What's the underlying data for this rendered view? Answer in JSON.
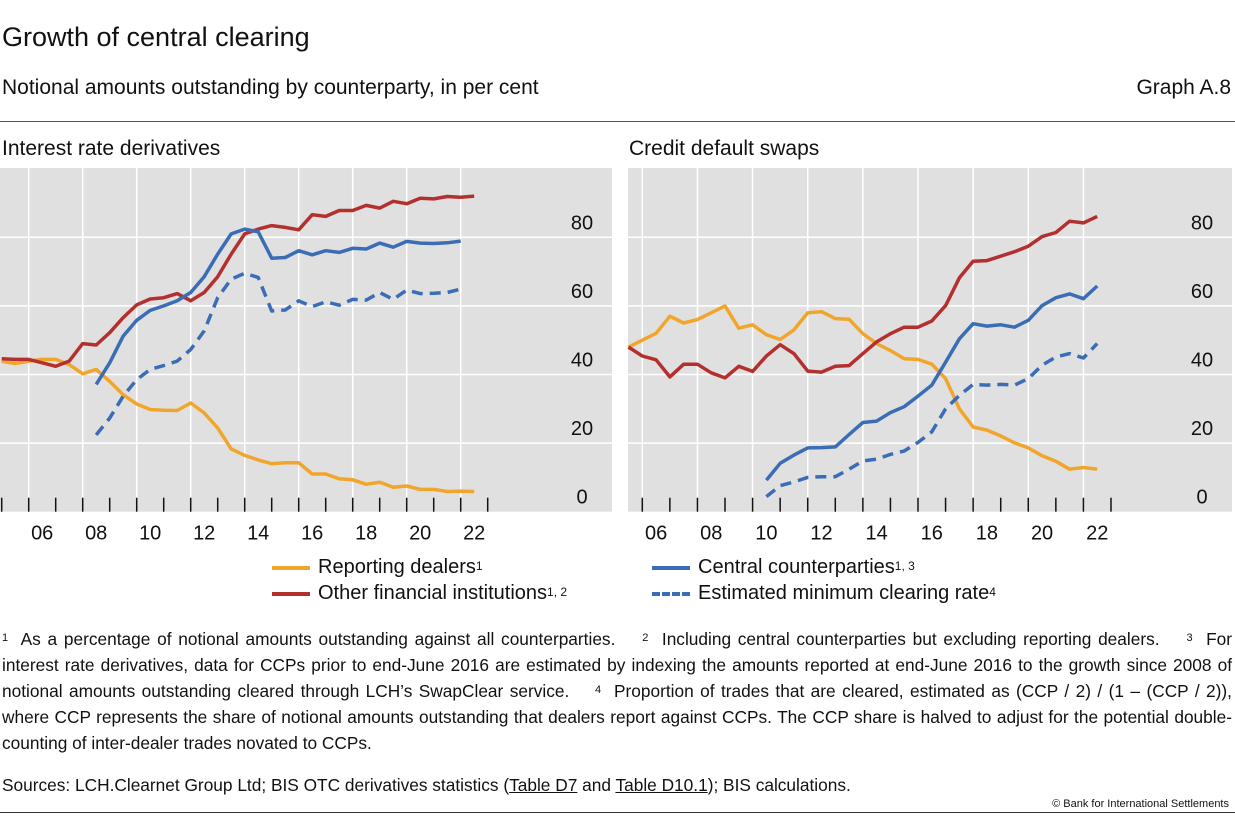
{
  "header": {
    "title": "Growth of central clearing",
    "subtitle": "Notional amounts outstanding by counterparty, in per cent",
    "graph_id": "Graph A.8"
  },
  "colors": {
    "reporting_dealers": "#F2A52B",
    "other_financial_institutions": "#B3302F",
    "central_counterparties": "#3A6DB5",
    "estimated_minimum_clearing_rate": "#3A6DB5",
    "plot_background": "#E0E0E0"
  },
  "chart_data": [
    {
      "type": "line",
      "title": "Interest rate derivatives",
      "x_tick_labels": [
        "06",
        "08",
        "10",
        "12",
        "14",
        "16",
        "18",
        "20",
        "22"
      ],
      "y_tick_labels": [
        "0",
        "20",
        "40",
        "60",
        "80"
      ],
      "ylim": [
        0,
        100
      ],
      "xlim": [
        2005.0,
        2023.2
      ],
      "y_axis_side": "right",
      "grid": true,
      "frequency": "semiannual",
      "series": [
        {
          "name": "Reporting dealers",
          "key": "reporting_dealers",
          "style": "solid",
          "x_start": 2005.0,
          "values": [
            43.9,
            43.2,
            43.9,
            44.4,
            44.4,
            42.9,
            40.2,
            41.5,
            38.0,
            34.1,
            31.4,
            29.8,
            29.6,
            29.5,
            31.7,
            28.8,
            24.4,
            18.3,
            16.4,
            15.1,
            14.0,
            14.3,
            14.3,
            11.0,
            11.0,
            9.6,
            9.3,
            8.0,
            8.6,
            7.1,
            7.5,
            6.5,
            6.5,
            5.9,
            6.0,
            5.9
          ]
        },
        {
          "name": "Other financial institutions",
          "key": "other_financial_institutions",
          "style": "solid",
          "x_start": 2005.0,
          "values": [
            44.6,
            44.4,
            44.4,
            43.4,
            42.4,
            43.9,
            49.0,
            48.6,
            52.2,
            56.6,
            60.3,
            62.0,
            62.4,
            63.6,
            61.5,
            63.9,
            68.5,
            75.1,
            81.0,
            82.4,
            83.4,
            82.9,
            82.2,
            86.6,
            86.1,
            87.8,
            87.8,
            89.3,
            88.5,
            90.5,
            89.8,
            91.4,
            91.2,
            91.9,
            91.7,
            92.0
          ]
        },
        {
          "name": "Central counterparties",
          "key": "central_counterparties",
          "style": "solid",
          "x_start": 2008.5,
          "values": [
            37.1,
            43.4,
            51.2,
            55.8,
            58.7,
            60.0,
            61.5,
            63.9,
            68.5,
            75.1,
            81.0,
            82.4,
            81.6,
            73.9,
            74.1,
            76.1,
            74.9,
            76.1,
            75.6,
            76.8,
            76.6,
            78.3,
            77.1,
            78.8,
            78.3,
            78.2,
            78.4,
            78.9
          ]
        },
        {
          "name": "Estimated minimum clearing rate",
          "key": "estimated_minimum_clearing_rate",
          "style": "dashed",
          "x_start": 2008.5,
          "values": [
            22.4,
            27.3,
            33.7,
            38.5,
            41.5,
            42.6,
            43.9,
            47.3,
            52.7,
            62.4,
            67.8,
            69.5,
            68.3,
            58.5,
            58.8,
            61.5,
            59.8,
            61.2,
            60.2,
            61.9,
            61.7,
            63.9,
            61.9,
            64.6,
            63.6,
            63.7,
            63.9,
            64.9
          ]
        }
      ]
    },
    {
      "type": "line",
      "title": "Credit default swaps",
      "x_tick_labels": [
        "06",
        "08",
        "10",
        "12",
        "14",
        "16",
        "18",
        "20",
        "22"
      ],
      "y_tick_labels": [
        "0",
        "20",
        "40",
        "60",
        "80"
      ],
      "ylim": [
        0,
        100
      ],
      "xlim": [
        2005.2,
        2023.2
      ],
      "y_axis_side": "right",
      "grid": true,
      "frequency": "semiannual",
      "series": [
        {
          "name": "Reporting dealers",
          "key": "reporting_dealers",
          "style": "solid",
          "x_start": 2005.5,
          "values": [
            48.0,
            50.0,
            52.0,
            57.0,
            55.0,
            56.0,
            58.0,
            60.0,
            53.5,
            54.5,
            51.6,
            50.2,
            53.0,
            58.0,
            58.3,
            56.3,
            56.1,
            51.9,
            49.0,
            47.0,
            44.6,
            44.4,
            43.0,
            38.8,
            30.0,
            24.7,
            23.8,
            22.1,
            20.1,
            18.6,
            16.3,
            14.7,
            12.4,
            12.9,
            12.4
          ]
        },
        {
          "name": "Other financial institutions",
          "key": "other_financial_institutions",
          "style": "solid",
          "x_start": 2005.5,
          "values": [
            48.0,
            45.4,
            44.3,
            39.3,
            43.0,
            43.0,
            40.5,
            39.0,
            42.4,
            40.9,
            45.4,
            48.7,
            46.1,
            41.0,
            40.7,
            42.4,
            42.6,
            46.1,
            49.5,
            51.9,
            53.8,
            53.8,
            55.6,
            60.1,
            68.2,
            73.0,
            73.2,
            74.5,
            75.8,
            77.4,
            80.2,
            81.4,
            84.7,
            84.2,
            86.1
          ]
        },
        {
          "name": "Central counterparties",
          "key": "central_counterparties",
          "style": "solid",
          "x_start": 2010.5,
          "values": [
            9.2,
            14.1,
            16.5,
            18.6,
            18.7,
            18.9,
            22.5,
            26.0,
            26.4,
            28.9,
            30.6,
            33.7,
            36.9,
            43.6,
            50.4,
            54.8,
            54.1,
            54.5,
            53.8,
            55.8,
            60.1,
            62.4,
            63.5,
            62.1,
            65.8
          ]
        },
        {
          "name": "Estimated minimum clearing rate",
          "key": "estimated_minimum_clearing_rate",
          "style": "dashed",
          "x_start": 2010.5,
          "values": [
            4.4,
            7.6,
            8.7,
            10.0,
            10.2,
            10.2,
            12.4,
            14.8,
            15.3,
            16.7,
            17.7,
            20.2,
            23.3,
            30.0,
            33.9,
            37.1,
            36.9,
            37.1,
            36.9,
            38.8,
            42.7,
            45.1,
            46.1,
            44.8,
            49.0
          ]
        }
      ]
    }
  ],
  "legend": {
    "items": [
      {
        "label": "Reporting dealers",
        "sup": "1"
      },
      {
        "label": "Other financial institutions",
        "sup": "1, 2"
      },
      {
        "label": "Central counterparties",
        "sup": "1, 3"
      },
      {
        "label": "Estimated minimum clearing rate",
        "sup": "4"
      }
    ]
  },
  "footnotes": [
    {
      "num": "1",
      "text": "As a percentage of notional amounts outstanding against all counterparties."
    },
    {
      "num": "2",
      "text": "Including central counterparties but excluding reporting dealers."
    },
    {
      "num": "3",
      "text": "For interest rate derivatives, data for CCPs prior to end-June 2016 are estimated by indexing the amounts reported at end-June 2016 to the growth since 2008 of notional amounts outstanding cleared through LCH’s SwapClear service."
    },
    {
      "num": "4",
      "text": "Proportion of trades that are cleared, estimated as (CCP / 2) / (1 – (CCP / 2)), where CCP represents the share of notional amounts outstanding that dealers report against CCPs. The CCP share is halved to adjust for the potential double-counting of inter-dealer trades novated to CCPs."
    }
  ],
  "sources": {
    "prefix": "Sources: LCH.Clearnet Group Ltd; BIS OTC derivatives statistics (",
    "link1": "Table D7",
    "mid": " and ",
    "link2": "Table D10.1",
    "suffix": "); BIS calculations."
  },
  "copyright": "© Bank for International Settlements"
}
